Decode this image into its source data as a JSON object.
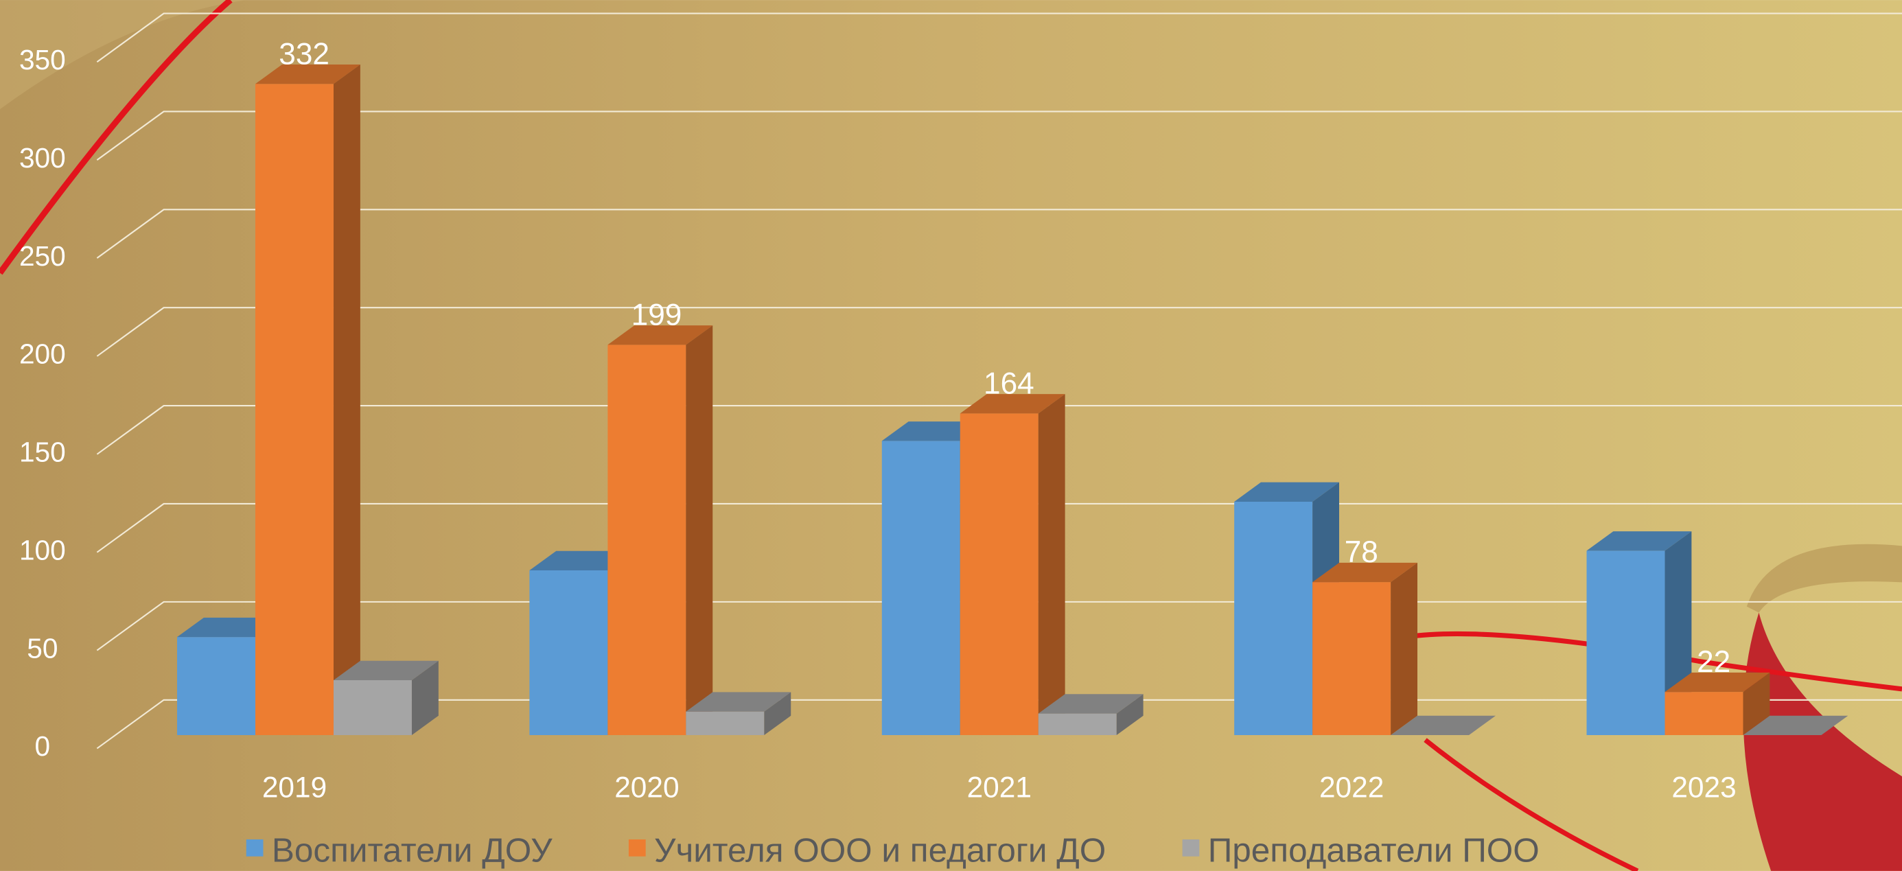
{
  "chart_data": {
    "type": "bar3d",
    "categories": [
      "2019",
      "2020",
      "2021",
      "2022",
      "2023"
    ],
    "series": [
      {
        "name": "Воспитатели ДОУ",
        "color": "#5b9bd5",
        "values": [
          50,
          84,
          150,
          119,
          94
        ]
      },
      {
        "name": "Учителя ООО и педагоги ДО",
        "color": "#ed7d31",
        "values": [
          332,
          199,
          164,
          78,
          22
        ],
        "data_labels": true
      },
      {
        "name": "Преподаватели ПОО",
        "color": "#a5a5a5",
        "values": [
          28,
          12,
          11,
          0,
          0
        ]
      }
    ],
    "ylim": [
      0,
      350
    ],
    "yticks": [
      0,
      50,
      100,
      150,
      200,
      250,
      300,
      350
    ],
    "grid": true,
    "legend": "bottom"
  }
}
